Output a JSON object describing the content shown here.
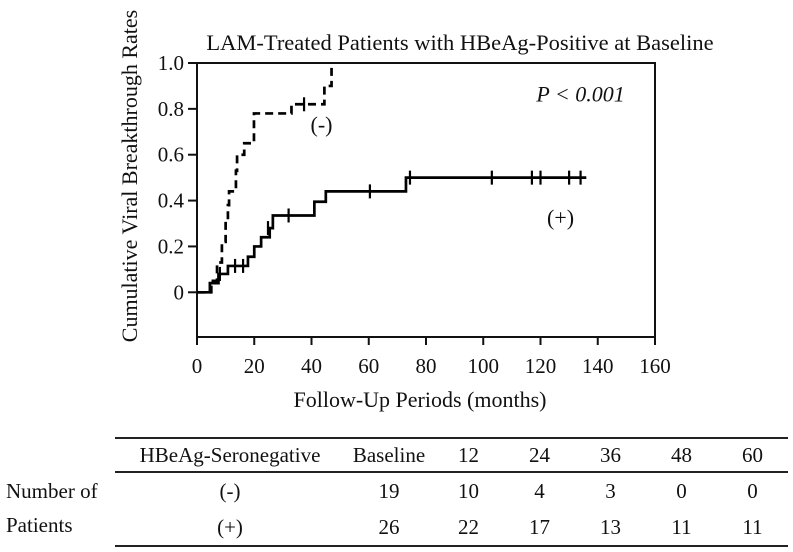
{
  "chart_data": {
    "type": "line",
    "subtype": "kaplan-meier-step",
    "title": "LAM-Treated Patients with HBeAg-Positive at Baseline",
    "xlabel": "Follow-Up Periods (months)",
    "ylabel": "Cumulative Viral Breakthrough Rates",
    "annotation": {
      "text": "P < 0.001",
      "pos": [
        134,
        0.862
      ]
    },
    "xlim": [
      0,
      160
    ],
    "ylim": [
      -0.195,
      1.0
    ],
    "grid": false,
    "legend": "inline-labels",
    "xticks": [
      0,
      20,
      40,
      60,
      80,
      100,
      120,
      140,
      160
    ],
    "xtick_labels": [
      "0",
      "20",
      "40",
      "60",
      "80",
      "100",
      "120",
      "140",
      "160"
    ],
    "yticks": [
      0,
      0.2,
      0.4,
      0.6,
      0.8,
      1.0
    ],
    "ytick_labels": [
      "0",
      "0.2",
      "0.4",
      "0.6",
      "0.8",
      "1.0"
    ],
    "series": [
      {
        "name": "HBeAg-Seronegative (-)",
        "line_style": "dashed",
        "color": "#000000",
        "label": "(-)",
        "label_pos": [
          43.5,
          0.73
        ],
        "steps": [
          [
            0,
            0
          ],
          [
            5,
            0.05
          ],
          [
            7,
            0.13
          ],
          [
            8.7,
            0.22
          ],
          [
            10,
            0.31
          ],
          [
            10.8,
            0.38
          ],
          [
            11.2,
            0.44
          ],
          [
            13.6,
            0.53
          ],
          [
            14,
            0.6
          ],
          [
            16.5,
            0.65
          ],
          [
            19.9,
            0.78
          ],
          [
            33,
            0.82
          ],
          [
            44.5,
            0.9
          ],
          [
            47,
            1.0
          ]
        ],
        "end_time": 47,
        "censor_marks": [
          [
            37.4,
            0.82
          ]
        ]
      },
      {
        "name": "HBeAg-Seronegative (+)",
        "line_style": "solid",
        "color": "#000000",
        "label": "(+)",
        "label_pos": [
          127,
          0.325
        ],
        "steps": [
          [
            0,
            0
          ],
          [
            4.5,
            0.04
          ],
          [
            7.5,
            0.08
          ],
          [
            10.8,
            0.115
          ],
          [
            17.8,
            0.155
          ],
          [
            20,
            0.2
          ],
          [
            22.4,
            0.24
          ],
          [
            25.4,
            0.28
          ],
          [
            26.5,
            0.335
          ],
          [
            41,
            0.395
          ],
          [
            45,
            0.44
          ],
          [
            73,
            0.5
          ]
        ],
        "end_time": 136,
        "censor_marks": [
          [
            8,
            0.08
          ],
          [
            13.3,
            0.115
          ],
          [
            16.1,
            0.115
          ],
          [
            24.8,
            0.28
          ],
          [
            32,
            0.335
          ],
          [
            60.4,
            0.44
          ],
          [
            74.4,
            0.5
          ],
          [
            103,
            0.5
          ],
          [
            117,
            0.5
          ],
          [
            120,
            0.5
          ],
          [
            130,
            0.5
          ],
          [
            134,
            0.5
          ]
        ]
      }
    ]
  },
  "table": {
    "row_header_lines": [
      "Number of",
      "Patients"
    ],
    "columns": [
      "HBeAg-Seronegative",
      "Baseline",
      "12",
      "24",
      "36",
      "48",
      "60"
    ],
    "rows": [
      {
        "cells": [
          "(-)",
          "19",
          "10",
          "4",
          "3",
          "0",
          "0"
        ]
      },
      {
        "cells": [
          "(+)",
          "26",
          "22",
          "17",
          "13",
          "11",
          "11"
        ]
      }
    ]
  }
}
